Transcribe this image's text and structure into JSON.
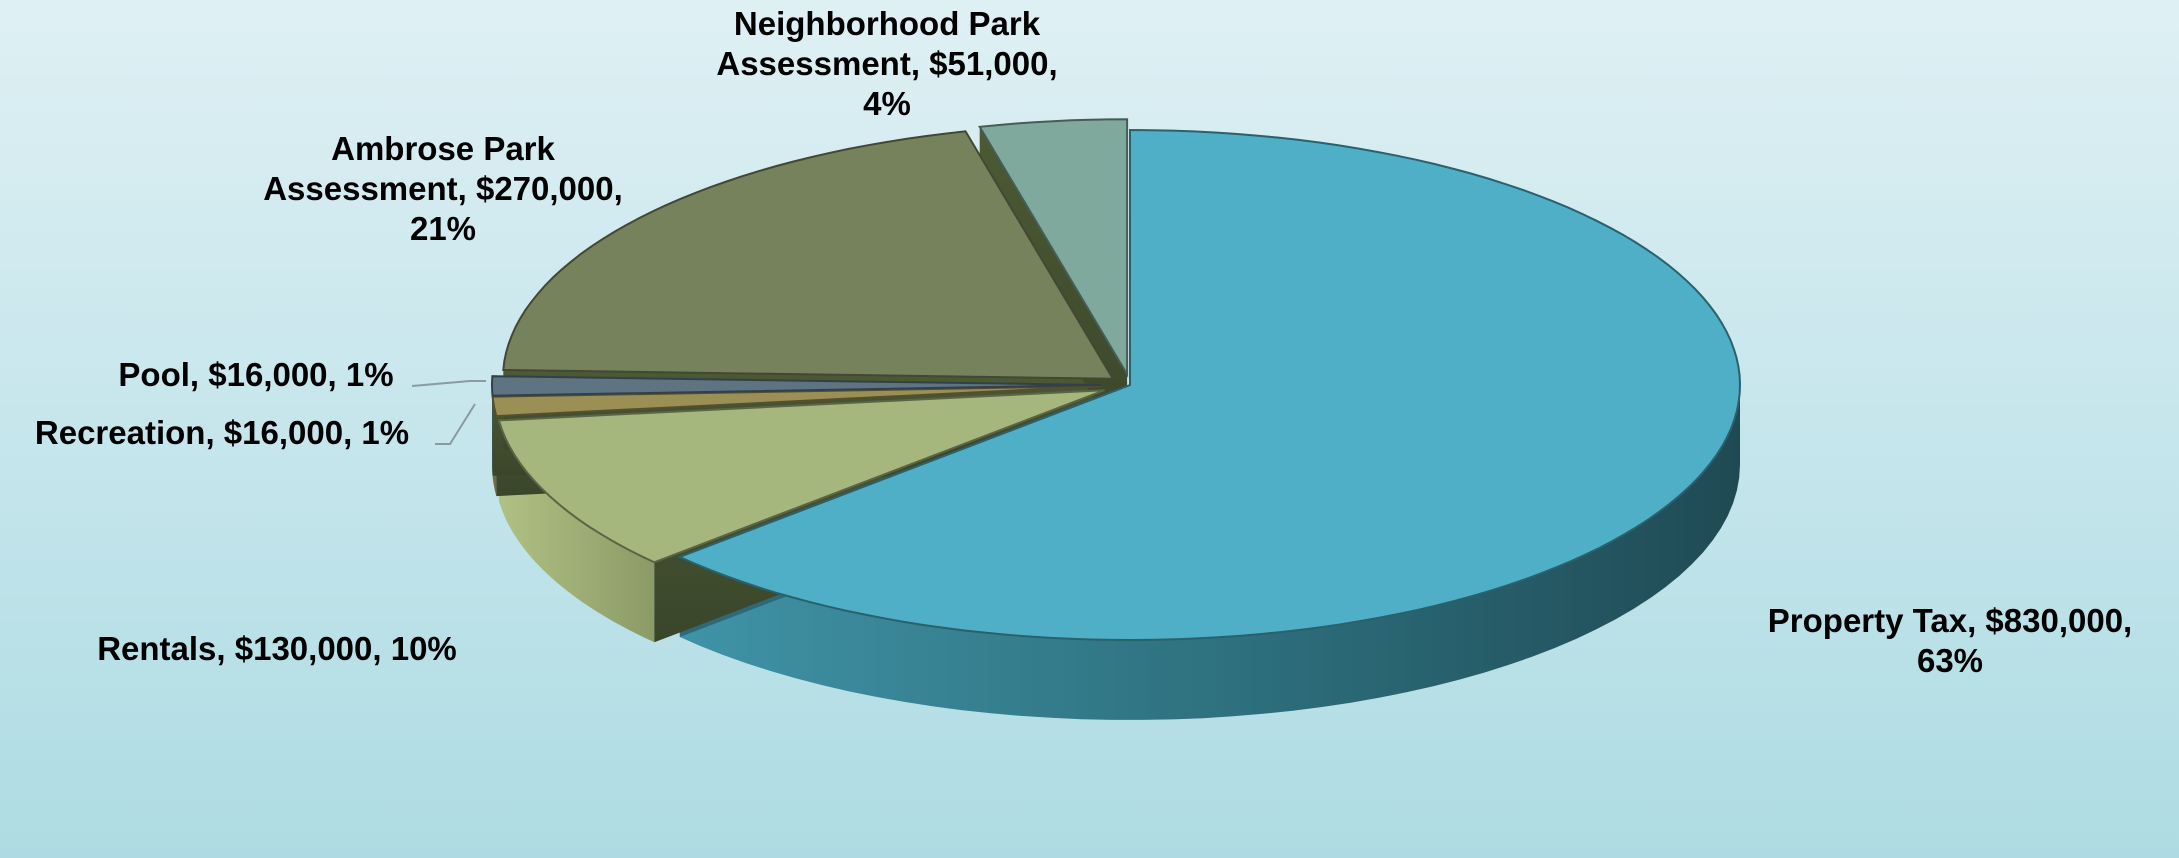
{
  "chart_data": {
    "type": "pie",
    "style": "3d-exploded",
    "title": "",
    "series": [
      {
        "values": [
          830000,
          130000,
          16000,
          16000,
          270000,
          51000
        ],
        "categories": [
          "Property Tax",
          "Rentals",
          "Recreation",
          "Pool",
          "Ambrose Park Assessment",
          "Neighborhood Park Assessment"
        ]
      }
    ],
    "slices": [
      {
        "category": "Property Tax",
        "value": 830000,
        "percent": 63,
        "color": "#4eafc6",
        "label_lines": [
          "Property Tax, $830,000,",
          "63%"
        ]
      },
      {
        "category": "Rentals",
        "value": 130000,
        "percent": 10,
        "color": "#a5b77d",
        "label_lines": [
          "Rentals, $130,000, 10%"
        ]
      },
      {
        "category": "Recreation",
        "value": 16000,
        "percent": 1,
        "color": "#9a8f55",
        "label_lines": [
          "Recreation, $16,000, 1%"
        ]
      },
      {
        "category": "Pool",
        "value": 16000,
        "percent": 1,
        "color": "#5e7483",
        "label_lines": [
          "Pool, $16,000, 1%"
        ]
      },
      {
        "category": "Ambrose Park Assessment",
        "value": 270000,
        "percent": 21,
        "color": "#76825c",
        "label_lines": [
          "Ambrose Park",
          "Assessment, $270,000,",
          "21%"
        ]
      },
      {
        "category": "Neighborhood Park Assessment",
        "value": 51000,
        "percent": 4,
        "color": "#7fa99c",
        "label_lines": [
          "Neighborhood Park",
          "Assessment, $51,000,",
          "4%"
        ]
      }
    ],
    "legend": "none",
    "data_labels": "category, value, percent"
  }
}
